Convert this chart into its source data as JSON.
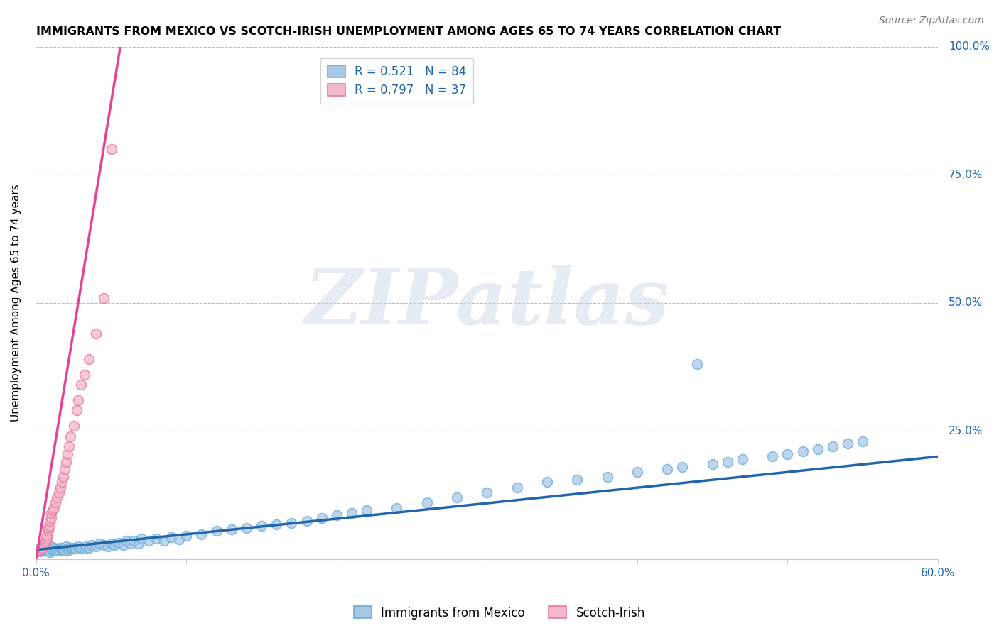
{
  "title": "IMMIGRANTS FROM MEXICO VS SCOTCH-IRISH UNEMPLOYMENT AMONG AGES 65 TO 74 YEARS CORRELATION CHART",
  "source": "Source: ZipAtlas.com",
  "ylabel": "Unemployment Among Ages 65 to 74 years",
  "xlim": [
    0.0,
    0.6
  ],
  "ylim": [
    0.0,
    1.0
  ],
  "legend1_label": "R = 0.521   N = 84",
  "legend2_label": "R = 0.797   N = 37",
  "blue_color": "#a8c8e8",
  "blue_edge_color": "#6baed6",
  "pink_color": "#f4b8cc",
  "pink_edge_color": "#e879a0",
  "blue_line_color": "#2166ac",
  "pink_line_color": "#e84393",
  "grid_color": "#bbbbbb",
  "watermark": "ZIPatlas",
  "mexico_x": [
    0.001,
    0.003,
    0.005,
    0.006,
    0.007,
    0.008,
    0.009,
    0.01,
    0.01,
    0.011,
    0.012,
    0.013,
    0.014,
    0.015,
    0.016,
    0.017,
    0.018,
    0.019,
    0.02,
    0.021,
    0.022,
    0.023,
    0.024,
    0.025,
    0.026,
    0.028,
    0.03,
    0.032,
    0.033,
    0.035,
    0.037,
    0.04,
    0.042,
    0.045,
    0.048,
    0.05,
    0.052,
    0.055,
    0.058,
    0.06,
    0.063,
    0.065,
    0.068,
    0.07,
    0.075,
    0.08,
    0.085,
    0.09,
    0.095,
    0.1,
    0.11,
    0.12,
    0.13,
    0.14,
    0.15,
    0.16,
    0.17,
    0.18,
    0.19,
    0.2,
    0.21,
    0.22,
    0.24,
    0.26,
    0.28,
    0.3,
    0.32,
    0.34,
    0.36,
    0.38,
    0.4,
    0.42,
    0.43,
    0.44,
    0.45,
    0.46,
    0.47,
    0.49,
    0.5,
    0.51,
    0.52,
    0.53,
    0.54,
    0.55
  ],
  "mexico_y": [
    0.02,
    0.015,
    0.018,
    0.022,
    0.018,
    0.016,
    0.014,
    0.02,
    0.025,
    0.018,
    0.022,
    0.016,
    0.02,
    0.018,
    0.022,
    0.02,
    0.018,
    0.016,
    0.025,
    0.02,
    0.018,
    0.022,
    0.02,
    0.022,
    0.02,
    0.025,
    0.022,
    0.02,
    0.025,
    0.022,
    0.028,
    0.025,
    0.03,
    0.028,
    0.025,
    0.03,
    0.028,
    0.032,
    0.028,
    0.035,
    0.03,
    0.035,
    0.03,
    0.04,
    0.035,
    0.04,
    0.035,
    0.042,
    0.038,
    0.045,
    0.048,
    0.055,
    0.058,
    0.06,
    0.065,
    0.068,
    0.07,
    0.075,
    0.08,
    0.085,
    0.09,
    0.095,
    0.1,
    0.11,
    0.12,
    0.13,
    0.14,
    0.15,
    0.155,
    0.16,
    0.17,
    0.175,
    0.18,
    0.38,
    0.185,
    0.19,
    0.195,
    0.2,
    0.205,
    0.21,
    0.215,
    0.22,
    0.225,
    0.23
  ],
  "scotch_x": [
    0.001,
    0.002,
    0.003,
    0.004,
    0.005,
    0.006,
    0.006,
    0.007,
    0.007,
    0.008,
    0.008,
    0.009,
    0.009,
    0.01,
    0.01,
    0.011,
    0.012,
    0.013,
    0.014,
    0.015,
    0.016,
    0.017,
    0.018,
    0.019,
    0.02,
    0.021,
    0.022,
    0.023,
    0.025,
    0.027,
    0.028,
    0.03,
    0.032,
    0.035,
    0.04,
    0.045,
    0.05
  ],
  "scotch_y": [
    0.015,
    0.018,
    0.02,
    0.022,
    0.028,
    0.032,
    0.035,
    0.04,
    0.045,
    0.055,
    0.06,
    0.065,
    0.075,
    0.08,
    0.09,
    0.095,
    0.1,
    0.11,
    0.12,
    0.13,
    0.14,
    0.15,
    0.16,
    0.175,
    0.19,
    0.205,
    0.22,
    0.24,
    0.26,
    0.29,
    0.31,
    0.34,
    0.36,
    0.39,
    0.44,
    0.51,
    0.8
  ],
  "blue_trend_x": [
    0.0,
    0.6
  ],
  "blue_trend_y": [
    0.018,
    0.2
  ],
  "pink_trend_x": [
    0.0,
    0.056
  ],
  "pink_trend_y": [
    0.0,
    1.0
  ]
}
